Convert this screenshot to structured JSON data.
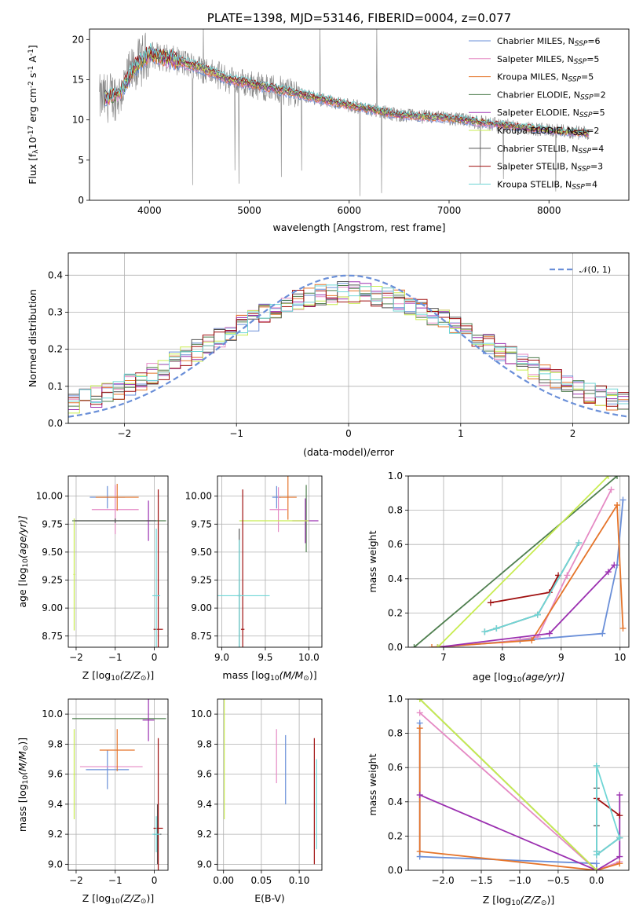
{
  "colors": {
    "chabrier_miles": "#6a8fd8",
    "salpeter_miles": "#e58ac4",
    "kroupa_miles": "#e5742a",
    "chabrier_elodie": "#4f7f4f",
    "salpeter_elodie": "#9b30b0",
    "kroupa_elodie": "#c8ec50",
    "chabrier_stelib": "#555555",
    "salpeter_stelib": "#a01010",
    "kroupa_stelib": "#70d6d6",
    "data": "#808080",
    "grid": "#b0b0b0"
  },
  "chart_data": [
    {
      "type": "line",
      "id": "spectrum",
      "title": "PLATE=1398, MJD=53146, FIBERID=0004, z=0.077",
      "xlabel": "wavelength [Angstrom, rest frame]",
      "ylabel_main": "Flux [f",
      "ylabel_sub1": "λ",
      "ylabel_mid": "10",
      "ylabel_sup1": "-17",
      "ylabel_mid2": " erg cm",
      "ylabel_sup2": "-2",
      "ylabel_mid3": " s",
      "ylabel_sup3": "-1",
      "ylabel_mid4": " A",
      "ylabel_sup4": "-1",
      "ylabel_end": "]",
      "xlim": [
        3400,
        8800
      ],
      "ylim": [
        0,
        21.3
      ],
      "xticks": [
        4000,
        5000,
        6000,
        7000,
        8000
      ],
      "yticks": [
        0,
        5,
        10,
        15,
        20
      ],
      "continuum": [
        [
          3500,
          12.5
        ],
        [
          3700,
          13.2
        ],
        [
          3850,
          16.5
        ],
        [
          4000,
          18.2
        ],
        [
          4200,
          17.6
        ],
        [
          4500,
          16.5
        ],
        [
          4800,
          15.0
        ],
        [
          5000,
          14.5
        ],
        [
          5500,
          13.2
        ],
        [
          6000,
          11.8
        ],
        [
          6500,
          10.6
        ],
        [
          7000,
          10.2
        ],
        [
          7500,
          9.4
        ],
        [
          8000,
          8.7
        ],
        [
          8400,
          8.3
        ]
      ],
      "legend": [
        {
          "pre": "Chabrier MILES, N",
          "sub": "SSP",
          "post": "=6",
          "color": "chabrier_miles"
        },
        {
          "pre": "Salpeter MILES, N",
          "sub": "SSP",
          "post": "=5",
          "color": "salpeter_miles"
        },
        {
          "pre": "Kroupa MILES, N",
          "sub": "SSP",
          "post": "=5",
          "color": "kroupa_miles"
        },
        {
          "pre": "Chabrier ELODIE, N",
          "sub": "SSP",
          "post": "=2",
          "color": "chabrier_elodie"
        },
        {
          "pre": "Salpeter ELODIE, N",
          "sub": "SSP",
          "post": "=5",
          "color": "salpeter_elodie"
        },
        {
          "pre": "Kroupa ELODIE, N",
          "sub": "SSP",
          "post": "=2",
          "color": "kroupa_elodie"
        },
        {
          "pre": "Chabrier STELIB, N",
          "sub": "SSP",
          "post": "=4",
          "color": "chabrier_stelib"
        },
        {
          "pre": "Salpeter STELIB, N",
          "sub": "SSP",
          "post": "=3",
          "color": "salpeter_stelib"
        },
        {
          "pre": "Kroupa STELIB, N",
          "sub": "SSP",
          "post": "=4",
          "color": "kroupa_stelib"
        }
      ]
    },
    {
      "type": "histogram",
      "id": "residuals",
      "xlabel": "(data-model)/error",
      "ylabel": "Normed distribution",
      "xlim": [
        -2.5,
        2.5
      ],
      "ylim": [
        0,
        0.46
      ],
      "xticks": [
        -2,
        -1,
        0,
        1,
        2
      ],
      "yticks": [
        0.0,
        0.1,
        0.2,
        0.3,
        0.4
      ],
      "legend_label": "𝒩(0, 1)",
      "gaussian": {
        "mean": 0,
        "sigma": 1,
        "color": "#6a8fd8"
      }
    },
    {
      "type": "scatter",
      "id": "age_vs_Z",
      "xlabel_pre": "Z [log",
      "xlabel_sub": "10",
      "xlabel_post": "(Z/Z",
      "xlabel_sub2": "⊙",
      "xlabel_end": ")]",
      "ylabel": "age  [log10(age/yr)]",
      "ylabel_pre": "age  [log",
      "ylabel_sub": "10",
      "ylabel_post": "(age/yr)]",
      "xlim": [
        -2.2,
        0.35
      ],
      "ylim": [
        8.65,
        10.18
      ],
      "xticks": [
        -2,
        -1,
        0
      ],
      "yticks": [
        8.75,
        9.0,
        9.25,
        9.5,
        9.75,
        10.0
      ],
      "points": [
        {
          "x": -1.2,
          "y": 9.99,
          "ex": 0.45,
          "ey": 0.1,
          "color": "chabrier_miles"
        },
        {
          "x": -1.0,
          "y": 9.88,
          "ex": 0.6,
          "ey": 0.22,
          "color": "salpeter_miles"
        },
        {
          "x": -0.95,
          "y": 9.99,
          "ex": 0.55,
          "ey": 0.12,
          "color": "kroupa_miles"
        },
        {
          "x": -0.9,
          "y": 9.78,
          "ex": 1.2,
          "ey": 0.0,
          "color": "chabrier_elodie"
        },
        {
          "x": -0.15,
          "y": 9.78,
          "ex": 0.05,
          "ey": 0.18,
          "color": "salpeter_elodie"
        },
        {
          "x": -2.05,
          "y": 9.3,
          "ex": 0.02,
          "ey": 0.5,
          "color": "kroupa_elodie"
        },
        {
          "x": -1.0,
          "y": 9.78,
          "ex": 1.05,
          "ey": 0.02,
          "color": "chabrier_stelib"
        },
        {
          "x": 0.1,
          "y": 8.81,
          "ex": 0.12,
          "ey": 1.25,
          "color": "salpeter_stelib"
        },
        {
          "x": 0.05,
          "y": 9.11,
          "ex": 0.1,
          "ey": 0.6,
          "color": "kroupa_stelib"
        }
      ]
    },
    {
      "type": "scatter",
      "id": "age_vs_mass",
      "xlabel_pre": "mass [log",
      "xlabel_sub": "10",
      "xlabel_post": "(M/M",
      "xlabel_sub2": "⊙",
      "xlabel_end": ")]",
      "xlim": [
        8.95,
        10.15
      ],
      "ylim": [
        8.65,
        10.18
      ],
      "xticks": [
        9.0,
        9.5,
        10.0
      ],
      "yticks": [
        8.75,
        9.0,
        9.25,
        9.5,
        9.75,
        10.0
      ],
      "points": [
        {
          "x": 9.63,
          "y": 9.99,
          "ex": 0.05,
          "ey": 0.1,
          "color": "chabrier_miles"
        },
        {
          "x": 9.65,
          "y": 9.88,
          "ex": 0.1,
          "ey": 0.2,
          "color": "salpeter_miles"
        },
        {
          "x": 9.76,
          "y": 9.99,
          "ex": 0.1,
          "ey": 0.2,
          "color": "kroupa_miles"
        },
        {
          "x": 9.97,
          "y": 9.8,
          "ex": 0.0,
          "ey": 0.3,
          "color": "chabrier_elodie"
        },
        {
          "x": 9.96,
          "y": 9.78,
          "ex": 0.15,
          "ey": 0.2,
          "color": "salpeter_elodie"
        },
        {
          "x": 9.6,
          "y": 9.78,
          "ex": 0.4,
          "ey": 0.0,
          "color": "kroupa_elodie"
        },
        {
          "x": 9.2,
          "y": 9.11,
          "ex": 0.02,
          "ey": 0.6,
          "color": "chabrier_stelib"
        },
        {
          "x": 9.24,
          "y": 8.81,
          "ex": 0.02,
          "ey": 1.25,
          "color": "salpeter_stelib"
        },
        {
          "x": 9.2,
          "y": 9.11,
          "ex": 0.35,
          "ey": 0.5,
          "color": "kroupa_stelib"
        }
      ]
    },
    {
      "type": "line",
      "id": "massweight_vs_age",
      "xlabel_pre": "age  [log",
      "xlabel_sub": "10",
      "xlabel_post": "(age/yr)]",
      "ylabel": "mass weight",
      "xlim": [
        6.4,
        10.15
      ],
      "ylim": [
        0,
        1.0
      ],
      "xticks": [
        7,
        8,
        9,
        10
      ],
      "yticks": [
        0.0,
        0.2,
        0.4,
        0.6,
        0.8,
        1.0
      ],
      "series": [
        {
          "color": "chabrier_miles",
          "points": [
            [
              6.9,
              0.0
            ],
            [
              8.3,
              0.04
            ],
            [
              9.7,
              0.08
            ],
            [
              9.95,
              0.48
            ],
            [
              10.05,
              0.86
            ]
          ]
        },
        {
          "color": "salpeter_miles",
          "points": [
            [
              6.9,
              0.0
            ],
            [
              8.0,
              0.03
            ],
            [
              8.6,
              0.06
            ],
            [
              9.1,
              0.42
            ],
            [
              9.85,
              0.92
            ]
          ]
        },
        {
          "color": "kroupa_miles",
          "points": [
            [
              6.8,
              0.0
            ],
            [
              8.5,
              0.04
            ],
            [
              9.95,
              0.83
            ],
            [
              10.05,
              0.11
            ]
          ]
        },
        {
          "color": "chabrier_elodie",
          "points": [
            [
              6.5,
              0.0
            ],
            [
              9.95,
              1.0
            ]
          ]
        },
        {
          "color": "salpeter_elodie",
          "points": [
            [
              6.9,
              0.0
            ],
            [
              8.8,
              0.08
            ],
            [
              9.8,
              0.44
            ],
            [
              9.9,
              0.48
            ]
          ]
        },
        {
          "color": "kroupa_elodie",
          "points": [
            [
              6.9,
              0.0
            ],
            [
              9.8,
              1.0
            ]
          ]
        },
        {
          "color": "chabrier_stelib",
          "points": [
            [
              7.7,
              0.09
            ],
            [
              7.9,
              0.11
            ],
            [
              8.6,
              0.19
            ],
            [
              9.3,
              0.61
            ]
          ]
        },
        {
          "color": "salpeter_stelib",
          "points": [
            [
              7.8,
              0.26
            ],
            [
              8.8,
              0.32
            ],
            [
              8.95,
              0.42
            ]
          ]
        },
        {
          "color": "kroupa_stelib",
          "points": [
            [
              7.7,
              0.09
            ],
            [
              7.9,
              0.11
            ],
            [
              8.6,
              0.19
            ],
            [
              9.3,
              0.61
            ]
          ]
        }
      ]
    },
    {
      "type": "scatter",
      "id": "mass_vs_Z",
      "xlabel_pre": "Z [log",
      "xlabel_sub": "10",
      "xlabel_post": "(Z/Z",
      "xlabel_sub2": "⊙",
      "xlabel_end": ")]",
      "ylabel_pre": "mass [log",
      "ylabel_sub": "10",
      "ylabel_post": "(M/M",
      "ylabel_sub2": "⊙",
      "ylabel_end": ")]",
      "xlim": [
        -2.2,
        0.35
      ],
      "ylim": [
        8.96,
        10.1
      ],
      "xticks": [
        -2,
        -1,
        0
      ],
      "yticks": [
        9.0,
        9.2,
        9.4,
        9.6,
        9.8,
        10.0
      ],
      "points": [
        {
          "x": -1.2,
          "y": 9.63,
          "ex": 0.55,
          "ey": 0.13,
          "color": "chabrier_miles"
        },
        {
          "x": -1.1,
          "y": 9.65,
          "ex": 0.8,
          "ey": 0.0,
          "color": "salpeter_miles"
        },
        {
          "x": -0.95,
          "y": 9.76,
          "ex": 0.45,
          "ey": 0.14,
          "color": "kroupa_miles"
        },
        {
          "x": -0.9,
          "y": 9.97,
          "ex": 1.2,
          "ey": 0.0,
          "color": "chabrier_elodie"
        },
        {
          "x": -0.15,
          "y": 9.96,
          "ex": 0.15,
          "ey": 0.14,
          "color": "salpeter_elodie"
        },
        {
          "x": -2.05,
          "y": 9.6,
          "ex": 0.02,
          "ey": 0.3,
          "color": "kroupa_elodie"
        },
        {
          "x": 0.08,
          "y": 9.2,
          "ex": 0.1,
          "ey": 0.2,
          "color": "chabrier_stelib"
        },
        {
          "x": 0.1,
          "y": 9.24,
          "ex": 0.12,
          "ey": 0.6,
          "color": "salpeter_stelib"
        },
        {
          "x": 0.05,
          "y": 9.2,
          "ex": 0.1,
          "ey": 0.12,
          "color": "kroupa_stelib"
        }
      ]
    },
    {
      "type": "scatter",
      "id": "mass_vs_EBV",
      "xlabel": "E(B-V)",
      "xlim": [
        -0.008,
        0.13
      ],
      "ylim": [
        8.96,
        10.1
      ],
      "xticks": [
        0.0,
        0.05,
        0.1
      ],
      "yticks": [
        9.0,
        9.2,
        9.4,
        9.6,
        9.8,
        10.0
      ],
      "points": [
        {
          "x": 0.082,
          "y": 9.63,
          "ex": 0,
          "ey": 0.23,
          "color": "chabrier_miles"
        },
        {
          "x": 0.07,
          "y": 9.72,
          "ex": 0,
          "ey": 0.18,
          "color": "salpeter_miles"
        },
        {
          "x": 0.001,
          "y": 9.7,
          "ex": 0,
          "ey": 0.4,
          "color": "kroupa_elodie"
        },
        {
          "x": 0.12,
          "y": 9.42,
          "ex": 0,
          "ey": 0.42,
          "color": "salpeter_stelib"
        },
        {
          "x": 0.123,
          "y": 9.4,
          "ex": 0,
          "ey": 0.3,
          "color": "kroupa_stelib"
        }
      ]
    },
    {
      "type": "line",
      "id": "massweight_vs_Z",
      "xlabel_pre": "Z [log",
      "xlabel_sub": "10",
      "xlabel_post": "(Z/Z",
      "xlabel_sub2": "⊙",
      "xlabel_end": ")]",
      "ylabel": "mass weight",
      "xlim": [
        -2.45,
        0.42
      ],
      "ylim": [
        0,
        1.0
      ],
      "xticks": [
        -2.0,
        -1.5,
        -1.0,
        -0.5,
        0.0
      ],
      "yticks": [
        0.0,
        0.2,
        0.4,
        0.6,
        0.8,
        1.0
      ],
      "series": [
        {
          "color": "chabrier_miles",
          "points": [
            [
              -2.3,
              0.86
            ],
            [
              -2.3,
              0.08
            ],
            [
              0.0,
              0.04
            ],
            [
              0.0,
              0.0
            ]
          ]
        },
        {
          "color": "salpeter_miles",
          "points": [
            [
              -2.3,
              0.92
            ],
            [
              0.0,
              0.0
            ],
            [
              0.3,
              0.05
            ]
          ]
        },
        {
          "color": "kroupa_miles",
          "points": [
            [
              -2.3,
              0.83
            ],
            [
              -2.3,
              0.11
            ],
            [
              0.0,
              0.0
            ],
            [
              0.3,
              0.04
            ]
          ]
        },
        {
          "color": "chabrier_elodie",
          "points": [
            [
              -2.3,
              1.0
            ],
            [
              0.0,
              0.0
            ]
          ]
        },
        {
          "color": "salpeter_elodie",
          "points": [
            [
              -2.3,
              0.44
            ],
            [
              0.0,
              0.0
            ],
            [
              0.3,
              0.08
            ],
            [
              0.3,
              0.44
            ]
          ]
        },
        {
          "color": "kroupa_elodie",
          "points": [
            [
              -2.3,
              1.0
            ],
            [
              0.0,
              0.0
            ]
          ]
        },
        {
          "color": "chabrier_stelib",
          "points": [
            [
              0.0,
              0.61
            ],
            [
              0.0,
              0.48
            ],
            [
              0.0,
              0.26
            ],
            [
              0.0,
              0.11
            ],
            [
              0.0,
              0.09
            ],
            [
              0.3,
              0.19
            ]
          ]
        },
        {
          "color": "salpeter_stelib",
          "points": [
            [
              0.0,
              0.42
            ],
            [
              0.3,
              0.32
            ]
          ]
        },
        {
          "color": "kroupa_stelib",
          "points": [
            [
              0.0,
              0.61
            ],
            [
              0.0,
              0.11
            ],
            [
              0.0,
              0.09
            ],
            [
              0.3,
              0.19
            ],
            [
              0.0,
              0.61
            ]
          ]
        }
      ]
    }
  ]
}
